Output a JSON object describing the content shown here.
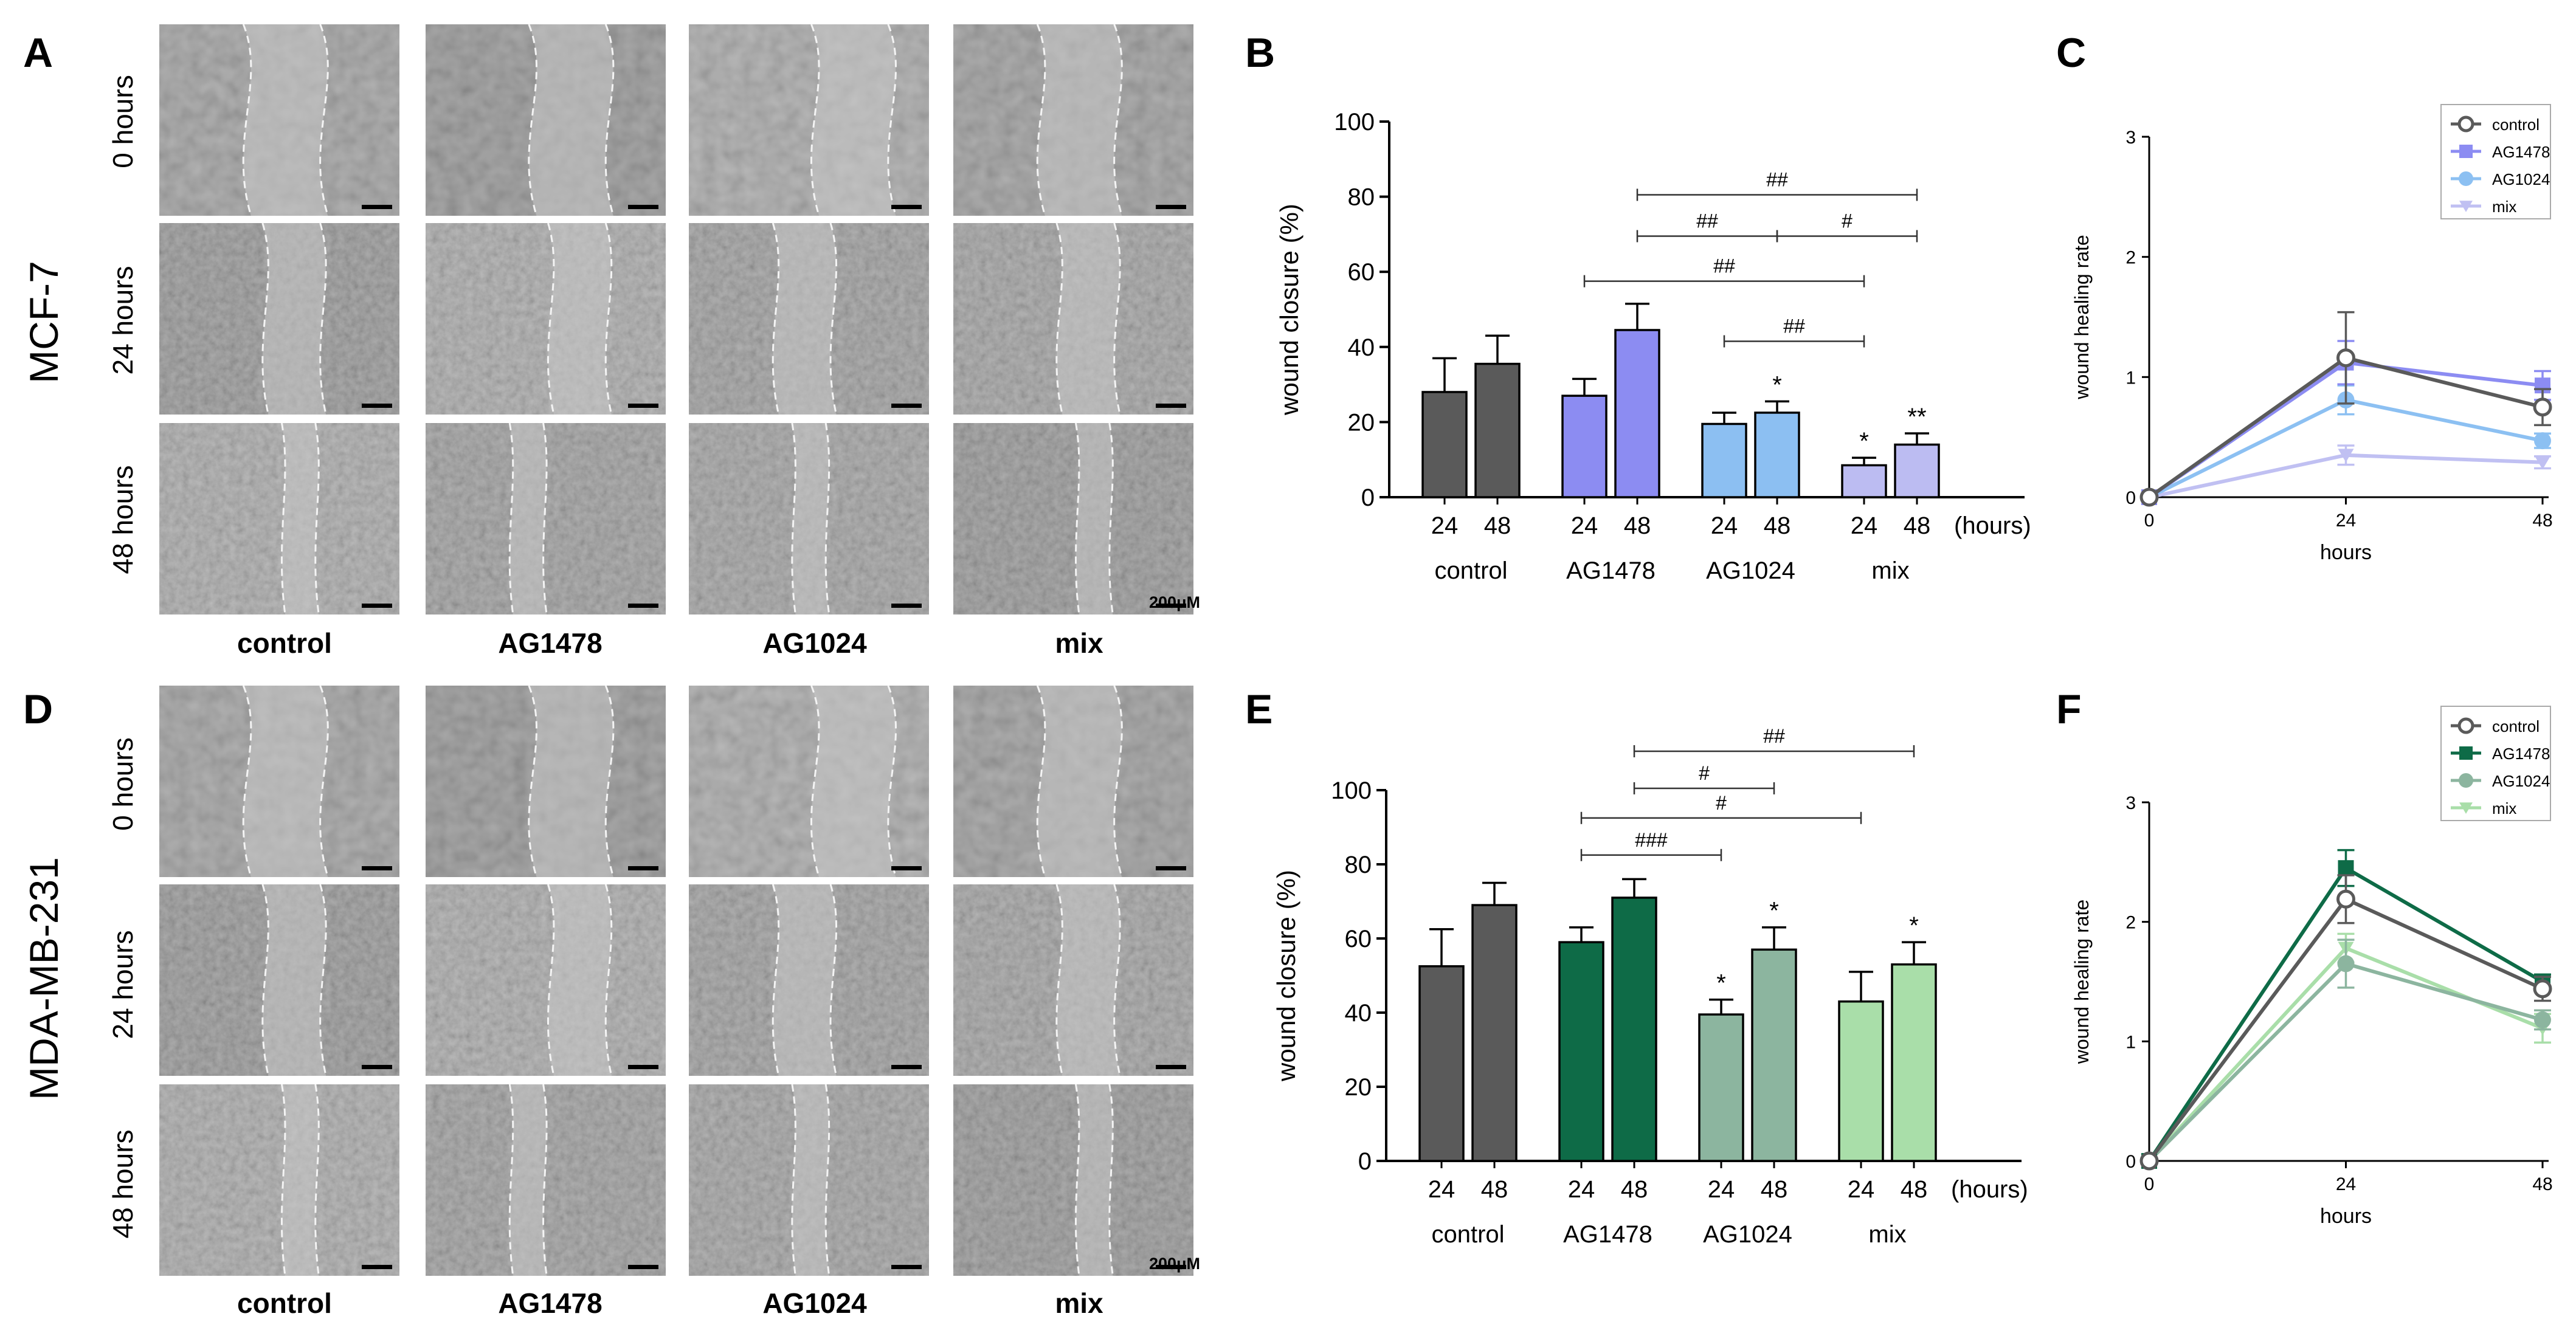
{
  "panel_letters": [
    "A",
    "B",
    "C",
    "D",
    "E",
    "F"
  ],
  "cell_lines": [
    "MCF-7",
    "MDA-MB-231"
  ],
  "time_labels": [
    "0 hours",
    "24 hours",
    "48 hours"
  ],
  "treatments": [
    "control",
    "AG1478",
    "AG1024",
    "mix"
  ],
  "scale_bar_label": "200μM",
  "colors": {
    "control": "#5a5a5a",
    "B": {
      "AG1478": "#8c8cf2",
      "AG1024": "#8cbff2",
      "mix": "#bcbcf2"
    },
    "E": {
      "AG1478": "#0e6b47",
      "AG1024": "#8cb59f",
      "mix": "#a9dea9"
    },
    "C": {
      "AG1478": "#8c8cf2",
      "AG1024": "#8cc0f2",
      "mix": "#c0c0f2"
    },
    "F": {
      "AG1478": "#0e6b47",
      "AG1024": "#8cb59f",
      "mix": "#a9dea9"
    }
  },
  "chart_data": [
    {
      "panel": "B",
      "type": "bar",
      "ylabel": "wound closure (%)",
      "ylim": [
        0,
        100
      ],
      "yticks": [
        0,
        20,
        40,
        60,
        80,
        100
      ],
      "x_unit_label": "(hours)",
      "groups": [
        "control",
        "AG1478",
        "AG1024",
        "mix"
      ],
      "timepoints": [
        "24",
        "48"
      ],
      "values": [
        [
          28,
          35.5
        ],
        [
          27,
          44.5
        ],
        [
          19.5,
          22.5
        ],
        [
          8.5,
          14
        ]
      ],
      "errors": [
        [
          9,
          7.5
        ],
        [
          4.5,
          7
        ],
        [
          3,
          3
        ],
        [
          2,
          3
        ]
      ],
      "significance_above_bar": [
        [
          "",
          ""
        ],
        [
          "",
          ""
        ],
        [
          "",
          "*"
        ],
        [
          "*",
          "**"
        ]
      ],
      "comparison_brackets": [
        {
          "from": [
            1,
            1
          ],
          "to": [
            3,
            1
          ],
          "label": "##",
          "y": 80.5
        },
        {
          "from": [
            1,
            1
          ],
          "to": [
            2,
            1
          ],
          "label": "##",
          "y": 69.5
        },
        {
          "from": [
            2,
            1
          ],
          "to": [
            3,
            1
          ],
          "label": "#",
          "y": 69.5
        },
        {
          "from": [
            1,
            0
          ],
          "to": [
            3,
            0
          ],
          "label": "##",
          "y": 57.5
        },
        {
          "from": [
            2,
            0
          ],
          "to": [
            3,
            0
          ],
          "label": "##",
          "y": 41.5
        }
      ]
    },
    {
      "panel": "C",
      "type": "line",
      "xlabel": "hours",
      "ylabel": "wound healing rate",
      "x": [
        0,
        24,
        48
      ],
      "xlim": [
        0,
        48
      ],
      "ylim": [
        0,
        3
      ],
      "yticks": [
        0,
        1,
        2,
        3
      ],
      "legend_position": "top-right",
      "series": [
        {
          "name": "control",
          "values": [
            0,
            1.16,
            0.75
          ],
          "errors": [
            0,
            0.38,
            0.15
          ],
          "marker": "open-circle"
        },
        {
          "name": "AG1478",
          "values": [
            0,
            1.12,
            0.93
          ],
          "errors": [
            0,
            0.18,
            0.12
          ],
          "marker": "square"
        },
        {
          "name": "AG1024",
          "values": [
            0,
            0.81,
            0.47
          ],
          "errors": [
            0,
            0.12,
            0.06
          ],
          "marker": "circle"
        },
        {
          "name": "mix",
          "values": [
            0,
            0.35,
            0.29
          ],
          "errors": [
            0,
            0.08,
            0.05
          ],
          "marker": "triangle-down"
        }
      ]
    },
    {
      "panel": "E",
      "type": "bar",
      "ylabel": "wound closure (%)",
      "ylim": [
        0,
        100
      ],
      "yticks": [
        0,
        20,
        40,
        60,
        80,
        100
      ],
      "x_unit_label": "(hours)",
      "groups": [
        "control",
        "AG1478",
        "AG1024",
        "mix"
      ],
      "timepoints": [
        "24",
        "48"
      ],
      "values": [
        [
          52.5,
          69
        ],
        [
          59,
          71
        ],
        [
          39.5,
          57
        ],
        [
          43,
          53
        ]
      ],
      "errors": [
        [
          10,
          6
        ],
        [
          4,
          5
        ],
        [
          4,
          6
        ],
        [
          8,
          6
        ]
      ],
      "significance_above_bar": [
        [
          "",
          ""
        ],
        [
          "",
          ""
        ],
        [
          "*",
          "*"
        ],
        [
          "",
          "*"
        ]
      ],
      "comparison_brackets": [
        {
          "from": [
            1,
            1
          ],
          "to": [
            3,
            1
          ],
          "label": "##",
          "y": 110.5
        },
        {
          "from": [
            1,
            1
          ],
          "to": [
            2,
            1
          ],
          "label": "#",
          "y": 100.5
        },
        {
          "from": [
            1,
            0
          ],
          "to": [
            3,
            0
          ],
          "label": "#",
          "y": 92.5
        },
        {
          "from": [
            1,
            0
          ],
          "to": [
            2,
            0
          ],
          "label": "###",
          "y": 82.5
        }
      ]
    },
    {
      "panel": "F",
      "type": "line",
      "xlabel": "hours",
      "ylabel": "wound healing rate",
      "x": [
        0,
        24,
        48
      ],
      "xlim": [
        0,
        48
      ],
      "ylim": [
        0,
        3
      ],
      "yticks": [
        0,
        1,
        2,
        3
      ],
      "legend_position": "top-right",
      "series": [
        {
          "name": "control",
          "values": [
            0,
            2.19,
            1.44
          ],
          "errors": [
            0,
            0.2,
            0.1
          ],
          "marker": "open-circle"
        },
        {
          "name": "AG1478",
          "values": [
            0,
            2.45,
            1.5
          ],
          "errors": [
            0,
            0.15,
            0.06
          ],
          "marker": "square"
        },
        {
          "name": "AG1024",
          "values": [
            0,
            1.65,
            1.18
          ],
          "errors": [
            0,
            0.2,
            0.08
          ],
          "marker": "circle"
        },
        {
          "name": "mix",
          "values": [
            0,
            1.78,
            1.11
          ],
          "errors": [
            0,
            0.12,
            0.12
          ],
          "marker": "triangle-down"
        }
      ]
    }
  ]
}
